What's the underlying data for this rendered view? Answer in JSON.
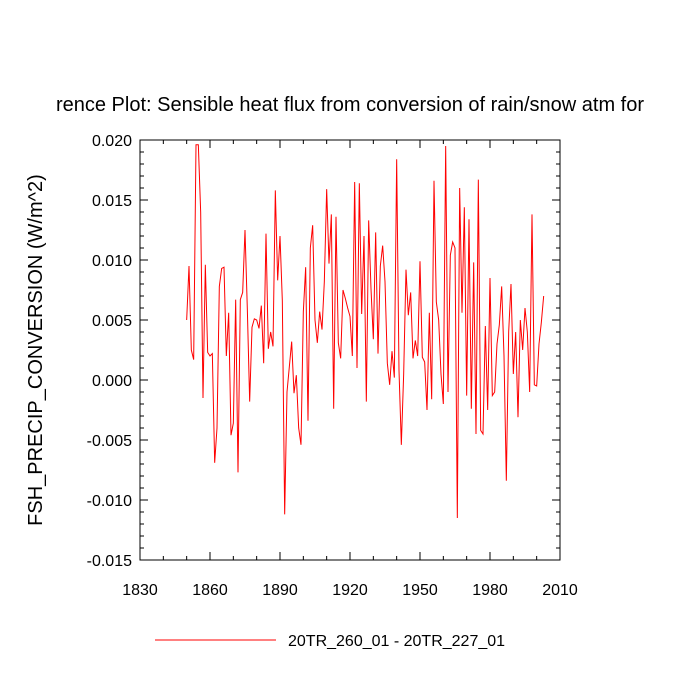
{
  "chart_data": {
    "type": "line",
    "title": "rence Plot: Sensible heat flux from conversion of rain/snow atm for",
    "xlabel": "",
    "ylabel": "FSH_PRECIP_CONVERSION  (W/m^2)",
    "xlim": [
      1830,
      2010
    ],
    "ylim": [
      -0.015,
      0.02
    ],
    "xticks": [
      1830,
      1860,
      1890,
      1920,
      1950,
      1980,
      2010
    ],
    "xtick_labels": [
      "1830",
      "1860",
      "1890",
      "1920",
      "1950",
      "1980",
      "2010"
    ],
    "yticks": [
      -0.015,
      -0.01,
      -0.005,
      0.0,
      0.005,
      0.01,
      0.015,
      0.02
    ],
    "ytick_labels": [
      "-0.015",
      "-0.010",
      "-0.005",
      "0.000",
      "0.005",
      "0.010",
      "0.015",
      "0.020"
    ],
    "grid": false,
    "legend_position": "bottom-center",
    "series": [
      {
        "name": "20TR_260_01 - 20TR_227_01",
        "color": "#ff0000",
        "x_start": 1850,
        "x_step": 1,
        "values": [
          0.005,
          0.0095,
          0.0025,
          0.0017,
          0.0196,
          0.0196,
          0.014,
          -0.0015,
          0.0096,
          0.0023,
          0.002,
          0.0022,
          -0.0069,
          -0.004,
          0.0078,
          0.0093,
          0.0094,
          0.002,
          0.0056,
          -0.0046,
          -0.0036,
          0.0067,
          -0.0077,
          0.0067,
          0.0073,
          0.0125,
          0.0059,
          -0.0018,
          0.0044,
          0.0051,
          0.005,
          0.0043,
          0.0062,
          0.0014,
          0.0122,
          0.0026,
          0.004,
          0.0028,
          0.0158,
          0.0083,
          0.012,
          0.0066,
          -0.0112,
          -0.001,
          0.0011,
          0.0032,
          -0.0011,
          0.0004,
          -0.004,
          -0.0054,
          0.0057,
          0.0094,
          -0.0034,
          0.011,
          0.0129,
          0.005,
          0.0031,
          0.0057,
          0.0042,
          0.0082,
          0.0159,
          0.0097,
          0.0138,
          -0.0024,
          0.0136,
          0.0031,
          0.0018,
          0.0075,
          0.0068,
          0.006,
          0.0053,
          0.002,
          0.0165,
          0.001,
          0.0164,
          0.0055,
          0.012,
          -0.0018,
          0.0133,
          0.0076,
          0.0034,
          0.0123,
          0.0022,
          0.0095,
          0.0112,
          0.0082,
          0.0014,
          -0.0004,
          0.0024,
          0.0002,
          0.0184,
          0.0008,
          -0.0054,
          0.0005,
          0.0092,
          0.0054,
          0.0073,
          0.0018,
          0.0033,
          0.002,
          0.0099,
          0.0019,
          0.0015,
          -0.0025,
          0.0056,
          -0.0016,
          0.0166,
          0.0065,
          0.005,
          0.0005,
          -0.002,
          0.0195,
          -0.001,
          0.0104,
          0.0115,
          0.011,
          -0.0115,
          0.016,
          0.0056,
          0.0144,
          -0.0013,
          0.0134,
          -0.0024,
          0.0098,
          -0.0045,
          0.0167,
          -0.0042,
          -0.0045,
          0.0045,
          -0.0025,
          0.0085,
          -0.0013,
          -0.001,
          0.003,
          0.0046,
          0.0078,
          0.002,
          -0.0084,
          0.004,
          0.008,
          0.0005,
          0.004,
          -0.0031,
          0.005,
          0.0025,
          0.006,
          0.004,
          -0.001,
          0.0138,
          -0.0004,
          -0.0005,
          0.003,
          0.0048,
          0.007
        ]
      }
    ]
  }
}
